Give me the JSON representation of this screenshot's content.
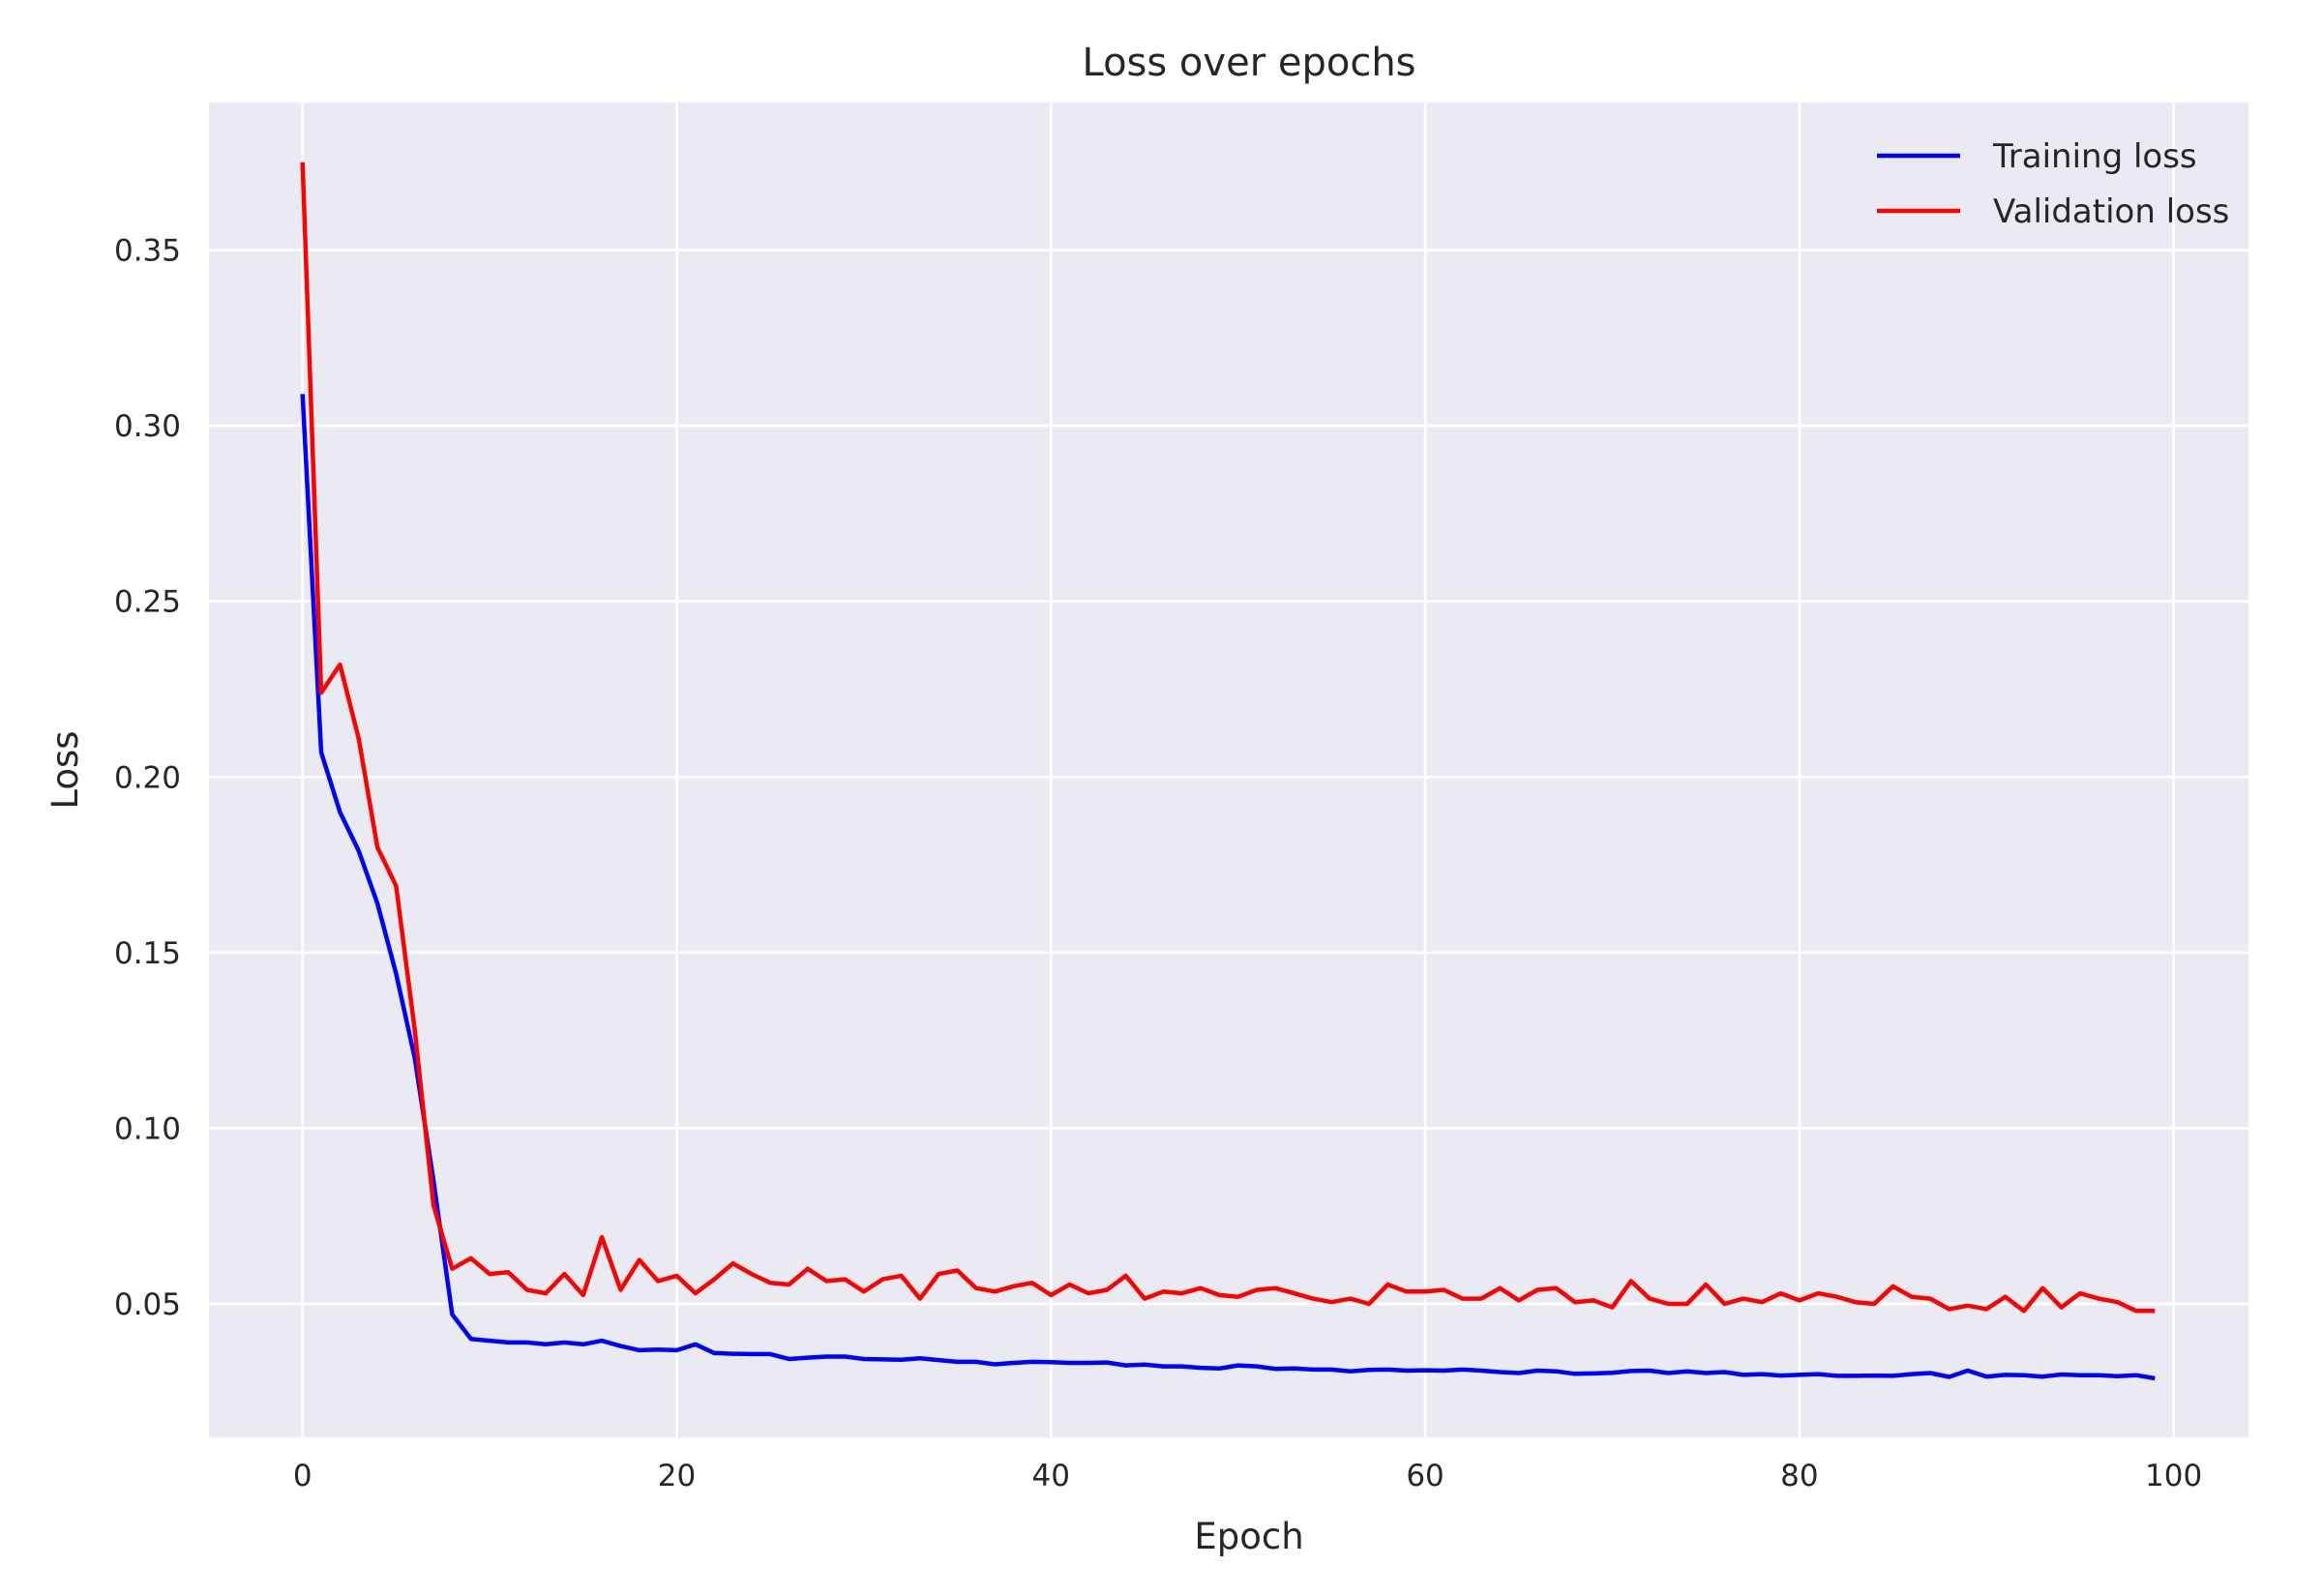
{
  "chart_data": {
    "type": "line",
    "title": "Loss over epochs",
    "xlabel": "Epoch",
    "ylabel": "Loss",
    "xlim": [
      -5,
      104
    ],
    "ylim": [
      0.012,
      0.392
    ],
    "xticks": [
      0,
      20,
      40,
      60,
      80,
      100
    ],
    "yticks": [
      0.05,
      0.1,
      0.15,
      0.2,
      0.25,
      0.3,
      0.35
    ],
    "ytick_labels": [
      "0.05",
      "0.10",
      "0.15",
      "0.20",
      "0.25",
      "0.30",
      "0.35"
    ],
    "grid": true,
    "legend_position": "top-right",
    "background": "#eaeaf2",
    "series": [
      {
        "name": "Training loss",
        "color": "#0000ff",
        "x": [
          0,
          1,
          2,
          3,
          4,
          5,
          6,
          7,
          8,
          9,
          10,
          11,
          12,
          13,
          14,
          15,
          16,
          17,
          18,
          19,
          20,
          21,
          22,
          23,
          24,
          25,
          26,
          27,
          28,
          29,
          30,
          31,
          32,
          33,
          34,
          35,
          36,
          37,
          38,
          39,
          40,
          41,
          42,
          43,
          44,
          45,
          46,
          47,
          48,
          49,
          50,
          51,
          52,
          53,
          54,
          55,
          56,
          57,
          58,
          59,
          60,
          61,
          62,
          63,
          64,
          65,
          66,
          67,
          68,
          69,
          70,
          71,
          72,
          73,
          74,
          75,
          76,
          77,
          78,
          79,
          80,
          81,
          82,
          83,
          84,
          85,
          86,
          87,
          88,
          89,
          90,
          91,
          92,
          93,
          94,
          95,
          96,
          97,
          98,
          99
        ],
        "values": [
          0.309,
          0.207,
          0.19,
          0.179,
          0.164,
          0.144,
          0.12,
          0.085,
          0.047,
          0.04,
          0.0395,
          0.039,
          0.039,
          0.0385,
          0.039,
          0.0385,
          0.0395,
          0.038,
          0.0368,
          0.037,
          0.0368,
          0.0385,
          0.036,
          0.0358,
          0.0357,
          0.0357,
          0.0343,
          0.0347,
          0.035,
          0.035,
          0.0343,
          0.0342,
          0.0341,
          0.0345,
          0.034,
          0.0335,
          0.0335,
          0.0328,
          0.0332,
          0.0335,
          0.0334,
          0.0332,
          0.0332,
          0.0333,
          0.0325,
          0.0327,
          0.0322,
          0.0322,
          0.0318,
          0.0316,
          0.0325,
          0.0322,
          0.0315,
          0.0316,
          0.0313,
          0.0313,
          0.0308,
          0.0312,
          0.0313,
          0.031,
          0.0311,
          0.031,
          0.0313,
          0.031,
          0.0306,
          0.0303,
          0.031,
          0.0308,
          0.0301,
          0.0302,
          0.0304,
          0.0309,
          0.031,
          0.0303,
          0.0308,
          0.0303,
          0.0306,
          0.0298,
          0.03,
          0.0296,
          0.0298,
          0.03,
          0.0295,
          0.0295,
          0.0296,
          0.0295,
          0.03,
          0.0303,
          0.0292,
          0.031,
          0.0293,
          0.0298,
          0.0297,
          0.0293,
          0.0299,
          0.0297,
          0.0297,
          0.0294,
          0.0297,
          0.0288
        ]
      },
      {
        "name": "Validation loss",
        "color": "#ff0000",
        "x": [
          0,
          1,
          2,
          3,
          4,
          5,
          6,
          7,
          8,
          9,
          10,
          11,
          12,
          13,
          14,
          15,
          16,
          17,
          18,
          19,
          20,
          21,
          22,
          23,
          24,
          25,
          26,
          27,
          28,
          29,
          30,
          31,
          32,
          33,
          34,
          35,
          36,
          37,
          38,
          39,
          40,
          41,
          42,
          43,
          44,
          45,
          46,
          47,
          48,
          49,
          50,
          51,
          52,
          53,
          54,
          55,
          56,
          57,
          58,
          59,
          60,
          61,
          62,
          63,
          64,
          65,
          66,
          67,
          68,
          69,
          70,
          71,
          72,
          73,
          74,
          75,
          76,
          77,
          78,
          79,
          80,
          81,
          82,
          83,
          84,
          85,
          86,
          87,
          88,
          89,
          90,
          91,
          92,
          93,
          94,
          95,
          96,
          97,
          98,
          99
        ],
        "values": [
          0.375,
          0.224,
          0.232,
          0.211,
          0.18,
          0.169,
          0.128,
          0.078,
          0.06,
          0.063,
          0.0585,
          0.059,
          0.054,
          0.053,
          0.0585,
          0.0525,
          0.069,
          0.054,
          0.0625,
          0.0565,
          0.058,
          0.053,
          0.057,
          0.0615,
          0.0585,
          0.056,
          0.0555,
          0.06,
          0.0565,
          0.057,
          0.0535,
          0.057,
          0.058,
          0.0515,
          0.0585,
          0.0595,
          0.0545,
          0.0535,
          0.055,
          0.056,
          0.0525,
          0.0555,
          0.053,
          0.054,
          0.058,
          0.0515,
          0.0535,
          0.053,
          0.0545,
          0.0525,
          0.052,
          0.054,
          0.0545,
          0.053,
          0.0515,
          0.0505,
          0.0515,
          0.05,
          0.0555,
          0.0535,
          0.0535,
          0.054,
          0.0515,
          0.0515,
          0.0545,
          0.051,
          0.054,
          0.0545,
          0.0505,
          0.051,
          0.049,
          0.0565,
          0.0515,
          0.05,
          0.05,
          0.0555,
          0.05,
          0.0515,
          0.0505,
          0.053,
          0.051,
          0.053,
          0.052,
          0.0505,
          0.05,
          0.055,
          0.052,
          0.0515,
          0.0485,
          0.0495,
          0.0485,
          0.052,
          0.048,
          0.0545,
          0.049,
          0.053,
          0.0515,
          0.0505,
          0.048,
          0.048
        ]
      }
    ]
  }
}
